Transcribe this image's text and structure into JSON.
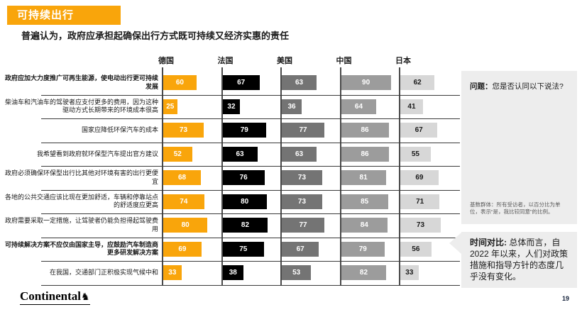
{
  "title": "可持续出行",
  "subtitle": "普遍认为，政府应承担起确保出行方式既可持续又经济实惠的责任",
  "colors": {
    "accent_orange": "#F9A50B",
    "france_black": "#000000",
    "usa_gray": "#747474",
    "china_gray": "#9C9C9C",
    "japan_gray": "#D7D7D7",
    "sidebar_bg": "#EDEDED",
    "grid_line": "#3a3a3a"
  },
  "chart_data": {
    "type": "bar",
    "orientation": "horizontal",
    "unit": "percent",
    "value_range": [
      0,
      100
    ],
    "grid": "row-separators and per-country axis lines",
    "legend_position": "column headers top",
    "categories": [
      "政府应加大力度推广可再生能源，使电动出行更可持续发展",
      "柴油车和汽油车的驾驶者应支付更多的费用，因为这种驱动方式长期带来的环境成本很高",
      "国家应降低环保汽车的成本",
      "我希望看到政府就环保型汽车提出官方建议",
      "政府必须确保环保型出行比其他对环境有害的出行更便宜",
      "各地的公共交通应该比现在更加舒适，车辆和停靠站点的舒适度应更高",
      "政府需要采取一定措施，让驾驶者仍能负担得起驾驶费用",
      "可持续解决方案不应仅由国家主导，应鼓励汽车制造商更多研发解决方案",
      "在我国，交通部门正积极实现气候中和"
    ],
    "emphasized_category_indexes": [
      0,
      7
    ],
    "series": [
      {
        "name": "德国",
        "color": "#F9A50B",
        "label_color": "#FFFFFF",
        "values": [
          60,
          25,
          73,
          52,
          68,
          74,
          80,
          69,
          33
        ]
      },
      {
        "name": "法国",
        "color": "#000000",
        "label_color": "#FFFFFF",
        "values": [
          67,
          32,
          79,
          63,
          76,
          80,
          82,
          75,
          38
        ]
      },
      {
        "name": "美国",
        "color": "#747474",
        "label_color": "#FFFFFF",
        "values": [
          63,
          36,
          77,
          63,
          73,
          73,
          77,
          67,
          53
        ]
      },
      {
        "name": "中国",
        "color": "#9C9C9C",
        "label_color": "#FFFFFF",
        "values": [
          90,
          64,
          86,
          86,
          81,
          85,
          84,
          79,
          82
        ]
      },
      {
        "name": "日本",
        "color": "#D7D7D7",
        "label_color": "#1A1A1A",
        "values": [
          62,
          41,
          67,
          55,
          69,
          71,
          73,
          56,
          33
        ]
      }
    ]
  },
  "sidebar": {
    "question_label": "问题：",
    "question_text": "您是否认同以下说法?",
    "base_note": "基数群体：所有受访者，以百分比为单位，表示“是，我比较同意”的比例。",
    "time_label": "时间对比:",
    "time_text": "总体而言，自2022 年以来，人们对政策措施和指导方针的态度几乎没有变化。"
  },
  "footer": {
    "logo_text": "Continental",
    "horse_icon": "♞",
    "page_number": "19"
  }
}
